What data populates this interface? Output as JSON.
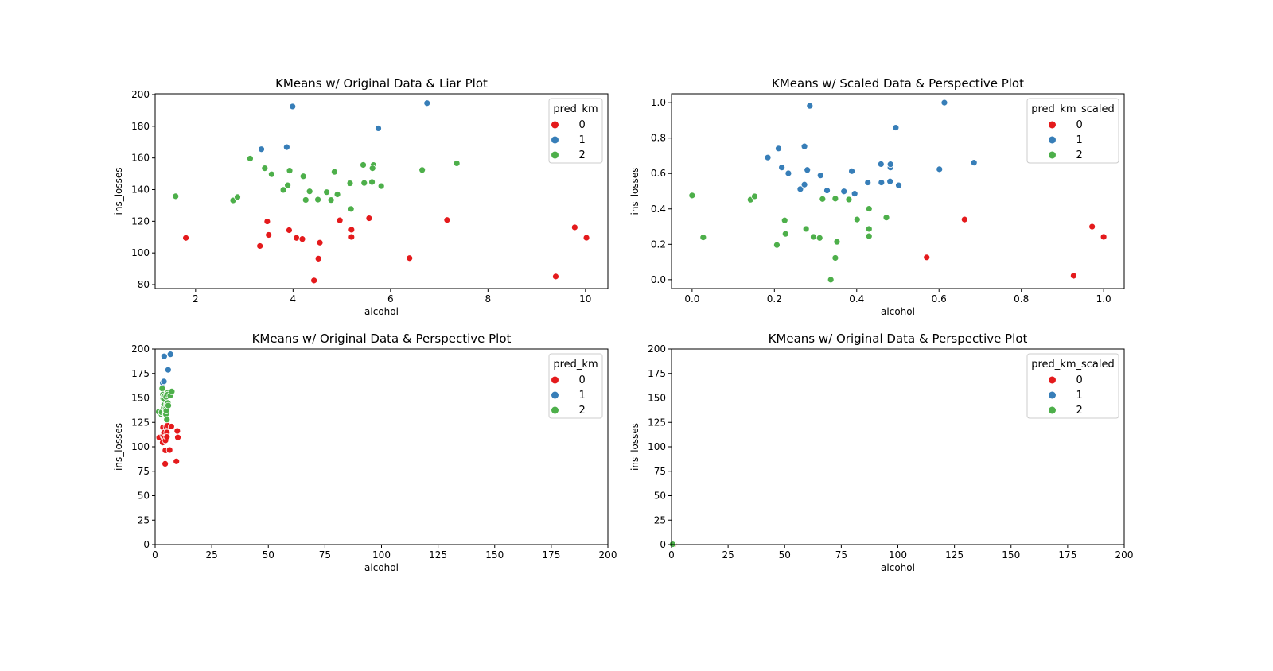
{
  "colors": {
    "0": "#e41a1c",
    "1": "#377eb8",
    "2": "#4daf4a"
  },
  "chart_data": [
    {
      "type": "scatter",
      "title": "KMeans w/ Original Data & Liar Plot",
      "xlabel": "alcohol",
      "ylabel": "ins_losses",
      "xlim": [
        1.17,
        10.46
      ],
      "ylim": [
        77.5,
        200.5
      ],
      "xticks": [
        2,
        4,
        6,
        8,
        10
      ],
      "xtick_labels": [
        "2",
        "4",
        "6",
        "8",
        "10"
      ],
      "yticks": [
        80,
        100,
        120,
        140,
        160,
        180,
        200
      ],
      "ytick_labels": [
        "80",
        "100",
        "120",
        "140",
        "160",
        "180",
        "200"
      ],
      "grid": false,
      "legend": {
        "title": "pred_km",
        "labels": [
          "0",
          "1",
          "2"
        ],
        "placement": "top-right"
      },
      "source": "original",
      "hue": "pred_km"
    },
    {
      "type": "scatter",
      "title": "KMeans w/ Scaled Data & Perspective Plot",
      "xlabel": "alcohol",
      "ylabel": "ins_losses",
      "xlim": [
        -0.05,
        1.05
      ],
      "ylim": [
        -0.05,
        1.05
      ],
      "xticks": [
        0,
        0.2,
        0.4,
        0.6,
        0.8,
        1.0
      ],
      "xtick_labels": [
        "0.0",
        "0.2",
        "0.4",
        "0.6",
        "0.8",
        "1.0"
      ],
      "yticks": [
        0,
        0.2,
        0.4,
        0.6,
        0.8,
        1.0
      ],
      "ytick_labels": [
        "0.0",
        "0.2",
        "0.4",
        "0.6",
        "0.8",
        "1.0"
      ],
      "grid": false,
      "legend": {
        "title": "pred_km_scaled",
        "labels": [
          "0",
          "1",
          "2"
        ],
        "placement": "top-right"
      },
      "source": "scaled",
      "hue": "pred_km_scaled"
    },
    {
      "type": "scatter",
      "title": "KMeans w/ Original Data & Perspective Plot",
      "xlabel": "alcohol",
      "ylabel": "ins_losses",
      "xlim": [
        0,
        200
      ],
      "ylim": [
        0,
        200
      ],
      "xticks": [
        0,
        25,
        50,
        75,
        100,
        125,
        150,
        175,
        200
      ],
      "xtick_labels": [
        "0",
        "25",
        "50",
        "75",
        "100",
        "125",
        "150",
        "175",
        "200"
      ],
      "yticks": [
        0,
        25,
        50,
        75,
        100,
        125,
        150,
        175,
        200
      ],
      "ytick_labels": [
        "0",
        "25",
        "50",
        "75",
        "100",
        "125",
        "150",
        "175",
        "200"
      ],
      "grid": false,
      "legend": {
        "title": "pred_km",
        "labels": [
          "0",
          "1",
          "2"
        ],
        "placement": "top-right"
      },
      "source": "original",
      "hue": "pred_km"
    },
    {
      "type": "scatter",
      "title": "KMeans w/ Original Data & Perspective Plot",
      "xlabel": "alcohol",
      "ylabel": "ins_losses",
      "xlim": [
        0,
        200
      ],
      "ylim": [
        0,
        200
      ],
      "xticks": [
        0,
        25,
        50,
        75,
        100,
        125,
        150,
        175,
        200
      ],
      "xtick_labels": [
        "0",
        "25",
        "50",
        "75",
        "100",
        "125",
        "150",
        "175",
        "200"
      ],
      "yticks": [
        0,
        25,
        50,
        75,
        100,
        125,
        150,
        175,
        200
      ],
      "ytick_labels": [
        "0",
        "25",
        "50",
        "75",
        "100",
        "125",
        "150",
        "175",
        "200"
      ],
      "grid": false,
      "legend": {
        "title": "pred_km_scaled",
        "labels": [
          "0",
          "1",
          "2"
        ],
        "placement": "top-right"
      },
      "source": "scaled",
      "hue": "pred_km_scaled"
    }
  ],
  "datasets": {
    "original": {
      "series": [
        {
          "name": "0",
          "points": [
            [
              1.8,
              109.5
            ],
            [
              3.32,
              104.4
            ],
            [
              3.47,
              119.9
            ],
            [
              3.5,
              111.4
            ],
            [
              3.92,
              114.4
            ],
            [
              4.07,
              109.5
            ],
            [
              4.19,
              108.8
            ],
            [
              4.55,
              106.5
            ],
            [
              4.52,
              96.4
            ],
            [
              4.43,
              82.6
            ],
            [
              4.96,
              120.6
            ],
            [
              5.2,
              114.7
            ],
            [
              5.2,
              110.1
            ],
            [
              5.56,
              121.9
            ],
            [
              6.39,
              96.7
            ],
            [
              7.16,
              120.8
            ],
            [
              9.39,
              85.1
            ],
            [
              9.78,
              116.2
            ],
            [
              10.02,
              109.6
            ]
          ]
        },
        {
          "name": "1",
          "points": [
            [
              3.35,
              165.5
            ],
            [
              3.87,
              166.8
            ],
            [
              3.99,
              192.5
            ],
            [
              5.75,
              178.7
            ],
            [
              6.75,
              194.6
            ]
          ]
        },
        {
          "name": "2",
          "points": [
            [
              1.59,
              135.8
            ],
            [
              2.77,
              133.2
            ],
            [
              2.86,
              135.3
            ],
            [
              3.12,
              159.6
            ],
            [
              3.42,
              153.5
            ],
            [
              3.56,
              149.7
            ],
            [
              3.93,
              152.0
            ],
            [
              3.89,
              142.7
            ],
            [
              3.8,
              139.8
            ],
            [
              4.21,
              148.4
            ],
            [
              4.34,
              138.9
            ],
            [
              4.26,
              133.5
            ],
            [
              4.51,
              133.7
            ],
            [
              4.69,
              138.4
            ],
            [
              4.78,
              133.4
            ],
            [
              4.91,
              137.0
            ],
            [
              4.85,
              151.2
            ],
            [
              5.17,
              144.0
            ],
            [
              5.19,
              127.8
            ],
            [
              5.44,
              155.6
            ],
            [
              5.46,
              144.2
            ],
            [
              5.62,
              144.8
            ],
            [
              5.65,
              155.5
            ],
            [
              5.63,
              153.5
            ],
            [
              5.81,
              142.2
            ],
            [
              6.65,
              152.4
            ],
            [
              7.36,
              156.6
            ]
          ]
        }
      ]
    },
    "scaled": {
      "series": [
        {
          "name": "0",
          "points": [
            [
              0.57,
              0.126
            ],
            [
              0.662,
              0.34
            ],
            [
              0.927,
              0.022
            ],
            [
              0.972,
              0.3
            ],
            [
              1.0,
              0.242
            ]
          ]
        },
        {
          "name": "1",
          "points": [
            [
              0.184,
              0.69
            ],
            [
              0.21,
              0.741
            ],
            [
              0.218,
              0.634
            ],
            [
              0.234,
              0.601
            ],
            [
              0.263,
              0.512
            ],
            [
              0.273,
              0.537
            ],
            [
              0.273,
              0.753
            ],
            [
              0.28,
              0.62
            ],
            [
              0.286,
              0.982
            ],
            [
              0.312,
              0.589
            ],
            [
              0.328,
              0.504
            ],
            [
              0.369,
              0.499
            ],
            [
              0.388,
              0.613
            ],
            [
              0.395,
              0.486
            ],
            [
              0.427,
              0.549
            ],
            [
              0.459,
              0.653
            ],
            [
              0.46,
              0.549
            ],
            [
              0.481,
              0.555
            ],
            [
              0.482,
              0.634
            ],
            [
              0.482,
              0.652
            ],
            [
              0.495,
              0.859
            ],
            [
              0.502,
              0.533
            ],
            [
              0.601,
              0.624
            ],
            [
              0.613,
              1.0
            ],
            [
              0.685,
              0.661
            ]
          ]
        },
        {
          "name": "2",
          "points": [
            [
              0,
              0.476
            ],
            [
              0.027,
              0.239
            ],
            [
              0.142,
              0.452
            ],
            [
              0.152,
              0.471
            ],
            [
              0.206,
              0.196
            ],
            [
              0.225,
              0.335
            ],
            [
              0.227,
              0.259
            ],
            [
              0.277,
              0.287
            ],
            [
              0.295,
              0.242
            ],
            [
              0.31,
              0.236
            ],
            [
              0.317,
              0.456
            ],
            [
              0.348,
              0.458
            ],
            [
              0.352,
              0.214
            ],
            [
              0.348,
              0.123
            ],
            [
              0.337,
              0.0
            ],
            [
              0.381,
              0.453
            ],
            [
              0.401,
              0.34
            ],
            [
              0.43,
              0.401
            ],
            [
              0.43,
              0.287
            ],
            [
              0.43,
              0.246
            ],
            [
              0.472,
              0.351
            ]
          ]
        }
      ]
    }
  }
}
